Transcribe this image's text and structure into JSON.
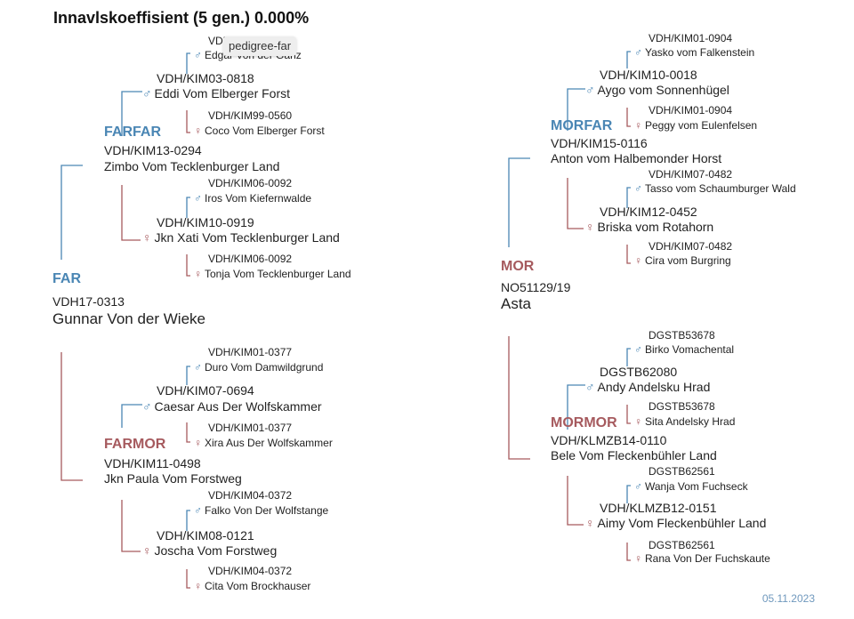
{
  "title": "Innavlskoeffisient (5 gen.) 0.000%",
  "tooltip": "pedigree-far",
  "date": "05.11.2023",
  "colors": {
    "male": "#4a86b4",
    "female": "#a65a5e"
  },
  "far": {
    "label": "FAR",
    "reg": "VDH17-0313",
    "name": "Gunnar Von der Wieke"
  },
  "mor": {
    "label": "MOR",
    "reg": "NO51129/19",
    "name": "Asta"
  },
  "farfar": {
    "label": "FARFAR",
    "reg": "VDH/KIM13-0294",
    "name": "Zimbo Vom Tecklenburger Land"
  },
  "farmor": {
    "label": "FARMOR",
    "reg": "VDH/KIM11-0498",
    "name": "Jkn Paula Vom Forstweg"
  },
  "morfar": {
    "label": "MORFAR",
    "reg": "VDH/KIM15-0116",
    "name": "Anton vom Halbemonder Horst"
  },
  "mormor": {
    "label": "MORMOR",
    "reg": "VDH/KLMZB14-0110",
    "name": "Bele Vom Fleckenbühler Land"
  },
  "gen3": {
    "ff_s": {
      "reg": "VDH/KIM03-0818",
      "name": "Eddi Vom Elberger Forst",
      "sex": "♂"
    },
    "ff_d": {
      "reg": "VDH/KIM10-0919",
      "name": "Jkn Xati Vom Tecklenburger Land",
      "sex": "♀"
    },
    "fm_s": {
      "reg": "VDH/KIM07-0694",
      "name": "Caesar Aus Der Wolfskammer",
      "sex": "♂"
    },
    "fm_d": {
      "reg": "VDH/KIM08-0121",
      "name": "Joscha Vom Forstweg",
      "sex": "♀"
    },
    "mf_s": {
      "reg": "VDH/KIM10-0018",
      "name": "Aygo vom Sonnenhügel",
      "sex": "♂"
    },
    "mf_d": {
      "reg": "VDH/KIM12-0452",
      "name": "Briska vom Rotahorn",
      "sex": "♀"
    },
    "mm_s": {
      "reg": "DGSTB62080",
      "name": "Andy Andelsku Hrad",
      "sex": "♂"
    },
    "mm_d": {
      "reg": "VDH/KLMZB12-0151",
      "name": "Aimy Vom Fleckenbühler Land",
      "sex": "♀"
    }
  },
  "gen4": {
    "g1": {
      "reg": "VDH/KIM92-0569",
      "name": "Edgar Von der Ganz",
      "sex": "♂"
    },
    "g2": {
      "reg": "VDH/KIM99-0560",
      "name": "Coco Vom Elberger Forst",
      "sex": "♀"
    },
    "g3": {
      "reg": "VDH/KIM06-0092",
      "name": "Iros Vom Kiefernwalde",
      "sex": "♂"
    },
    "g4": {
      "reg": "VDH/KIM06-0092",
      "name": "Tonja Vom Tecklenburger Land",
      "sex": "♀"
    },
    "g5": {
      "reg": "VDH/KIM01-0377",
      "name": "Duro Vom Damwildgrund",
      "sex": "♂"
    },
    "g6": {
      "reg": "VDH/KIM01-0377",
      "name": "Xira Aus Der Wolfskammer",
      "sex": "♀"
    },
    "g7": {
      "reg": "VDH/KIM04-0372",
      "name": "Falko Von Der Wolfstange",
      "sex": "♂"
    },
    "g8": {
      "reg": "VDH/KIM04-0372",
      "name": "Cita Vom Brockhauser",
      "sex": "♀"
    },
    "g9": {
      "reg": "VDH/KIM01-0904",
      "name": "Yasko vom Falkenstein",
      "sex": "♂"
    },
    "g10": {
      "reg": "VDH/KIM01-0904",
      "name": "Peggy vom Eulenfelsen",
      "sex": "♀"
    },
    "g11": {
      "reg": "VDH/KIM07-0482",
      "name": "Tasso vom Schaumburger Wald",
      "sex": "♂"
    },
    "g12": {
      "reg": "VDH/KIM07-0482",
      "name": "Cira vom Burgring",
      "sex": "♀"
    },
    "g13": {
      "reg": "DGSTB53678",
      "name": "Birko Vomachental",
      "sex": "♂"
    },
    "g14": {
      "reg": "DGSTB53678",
      "name": "Sita Andelsky Hrad",
      "sex": "♀"
    },
    "g15": {
      "reg": "DGSTB62561",
      "name": "Wanja Vom Fuchseck",
      "sex": "♂"
    },
    "g16": {
      "reg": "DGSTB62561",
      "name": "Rana Von Der Fuchskaute",
      "sex": "♀"
    }
  }
}
